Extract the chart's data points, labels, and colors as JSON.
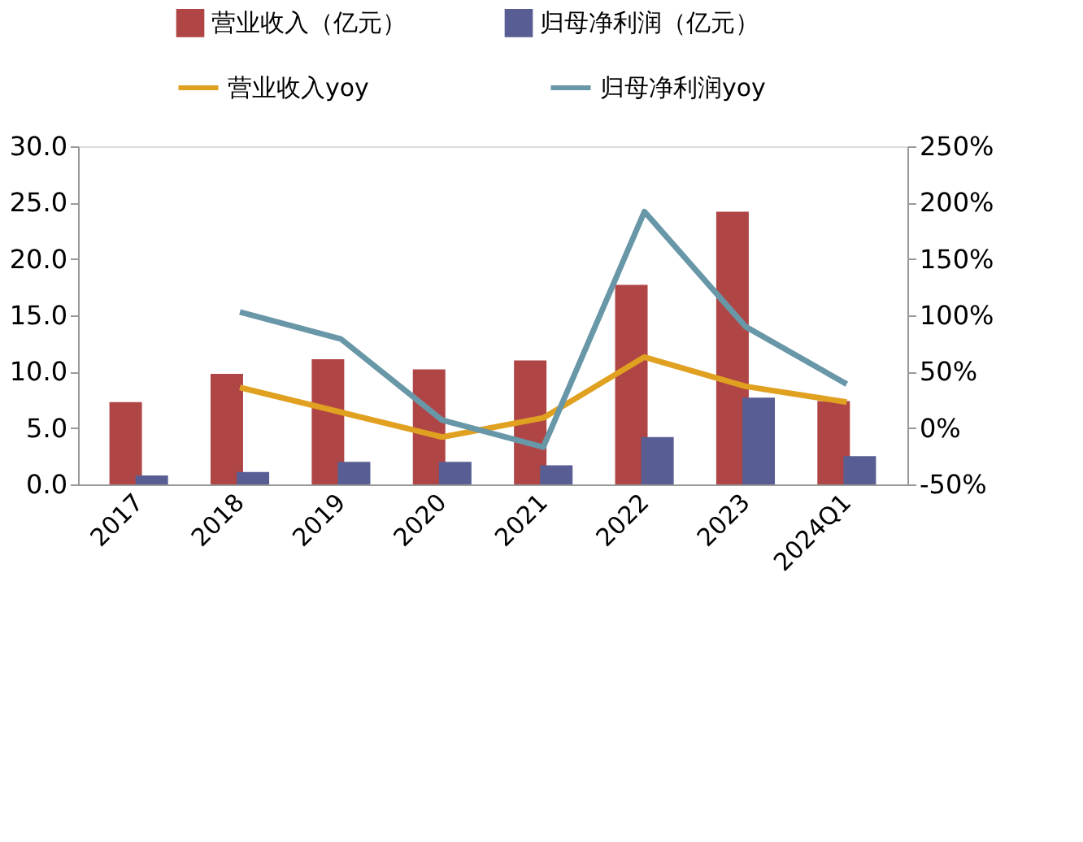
{
  "chart_data": {
    "type": "bar",
    "categories": [
      "2017",
      "2018",
      "2019",
      "2020",
      "2021",
      "2022",
      "2023",
      "2024Q1"
    ],
    "series": [
      {
        "name": "营业收入（亿元）",
        "type": "bar",
        "color": "#b04545",
        "values": [
          7.3,
          9.8,
          11.1,
          10.2,
          11.0,
          17.7,
          24.2,
          7.4
        ]
      },
      {
        "name": "归母净利润（亿元）",
        "type": "bar",
        "color": "#585e94",
        "values": [
          0.8,
          1.1,
          2.0,
          2.0,
          1.7,
          4.2,
          7.7,
          2.5
        ]
      },
      {
        "name": "营业收入yoy",
        "type": "line",
        "axis": "y2",
        "color": "#e0a020",
        "values": [
          null,
          36,
          14,
          -8,
          9,
          63,
          37,
          23
        ]
      },
      {
        "name": "归母净利润yoy",
        "type": "line",
        "axis": "y2",
        "color": "#6897a8",
        "values": [
          null,
          103,
          79,
          7,
          -17,
          192,
          90,
          39
        ]
      }
    ],
    "ylim": [
      0,
      30
    ],
    "yticks": [
      {
        "value": 0,
        "label": "0.0"
      },
      {
        "value": 5,
        "label": "5.0"
      },
      {
        "value": 10,
        "label": "10.0"
      },
      {
        "value": 15,
        "label": "15.0"
      },
      {
        "value": 20,
        "label": "20.0"
      },
      {
        "value": 25,
        "label": "25.0"
      },
      {
        "value": 30,
        "label": "30.0"
      }
    ],
    "y2lim": [
      -50,
      250
    ],
    "y2ticks": [
      {
        "value": -50,
        "label": "-50%"
      },
      {
        "value": 0,
        "label": "0%"
      },
      {
        "value": 50,
        "label": "50%"
      },
      {
        "value": 100,
        "label": "100%"
      },
      {
        "value": 150,
        "label": "150%"
      },
      {
        "value": 200,
        "label": "200%"
      },
      {
        "value": 250,
        "label": "250%"
      }
    ],
    "legend": "top",
    "grid": false
  }
}
